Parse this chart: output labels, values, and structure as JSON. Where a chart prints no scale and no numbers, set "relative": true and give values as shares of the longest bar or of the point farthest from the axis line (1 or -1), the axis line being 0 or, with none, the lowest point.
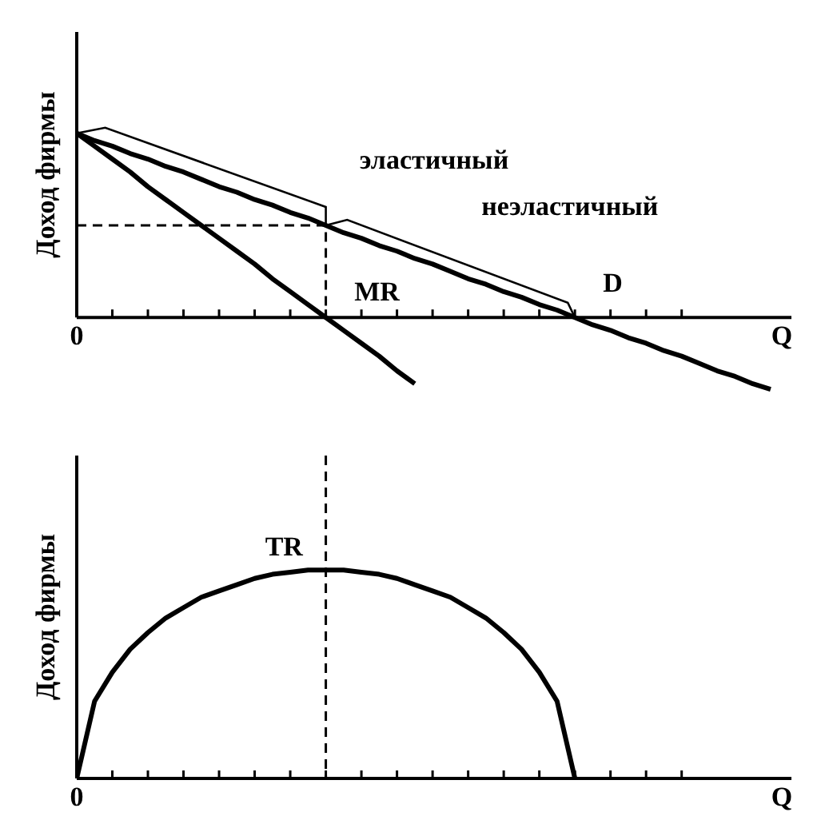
{
  "chart_data": [
    {
      "type": "line",
      "relative": true,
      "xlabel": "Q",
      "ylabel": "Доход фирмы",
      "categories": [
        null,
        null,
        null,
        null,
        null,
        null,
        null,
        null,
        null,
        null,
        null,
        null,
        null,
        null,
        null,
        null,
        null,
        null,
        null,
        null,
        null,
        null,
        null,
        null,
        null,
        null,
        null,
        null,
        null,
        null,
        null,
        null,
        null,
        null,
        null,
        null,
        null,
        null,
        null,
        null
      ],
      "series": [
        {
          "color": "#000000",
          "values": [
            1,
            0.96,
            0.93,
            0.89,
            0.86,
            0.82,
            0.79,
            0.75,
            0.71,
            0.68,
            0.64,
            0.61,
            0.57,
            0.54,
            0.5,
            0.46,
            0.43,
            0.39,
            0.36,
            0.32,
            0.29,
            0.25,
            0.21,
            0.18,
            0.14,
            0.11,
            0.07,
            0.04,
            0,
            -0.04,
            -0.07,
            -0.11,
            -0.14,
            -0.18,
            -0.21,
            -0.25,
            -0.29,
            -0.32,
            -0.36,
            -0.39
          ]
        },
        {
          "color": "#000000",
          "values": [
            1,
            0.93,
            0.86,
            0.79,
            0.71,
            0.64,
            0.57,
            0.5,
            0.43,
            0.36,
            0.29,
            0.21,
            0.14,
            0.07,
            0,
            -0.07,
            -0.14,
            -0.21,
            -0.29,
            -0.36,
            null,
            null,
            null,
            null,
            null,
            null,
            null,
            null,
            null,
            null,
            null,
            null,
            null,
            null,
            null,
            null,
            null,
            null,
            null,
            null
          ]
        }
      ],
      "annotations": [
        "0",
        "эластичный",
        "неэластичный",
        "MR",
        "D"
      ]
    },
    {
      "type": "line",
      "relative": true,
      "xlabel": "Q",
      "ylabel": "Доход фирмы",
      "categories": [
        null,
        null,
        null,
        null,
        null,
        null,
        null,
        null,
        null,
        null,
        null,
        null,
        null,
        null,
        null,
        null,
        null,
        null,
        null,
        null,
        null,
        null,
        null,
        null,
        null,
        null,
        null,
        null,
        null,
        null,
        null,
        null,
        null,
        null,
        null,
        null,
        null,
        null,
        null,
        null
      ],
      "series": [
        {
          "color": "#000000",
          "values": [
            0,
            0.37,
            0.51,
            0.62,
            0.7,
            0.77,
            0.82,
            0.87,
            0.9,
            0.93,
            0.96,
            0.98,
            0.99,
            1,
            1,
            1,
            0.99,
            0.98,
            0.96,
            0.93,
            0.9,
            0.87,
            0.82,
            0.77,
            0.7,
            0.62,
            0.51,
            0.37,
            0,
            null,
            null,
            null,
            null,
            null,
            null,
            null,
            null,
            null,
            null,
            null
          ]
        }
      ],
      "annotations": [
        "0",
        "TR"
      ]
    }
  ]
}
